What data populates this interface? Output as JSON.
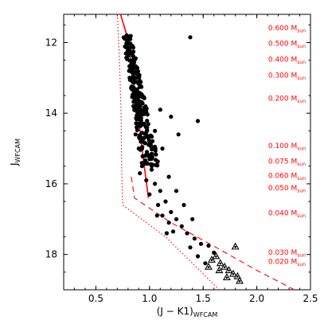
{
  "chart_data": {
    "type": "scatter",
    "title": "",
    "xlabel": {
      "main": "(J − K1)",
      "sub": "WFCAM"
    },
    "ylabel": {
      "main": "J",
      "sub": "WFCAM"
    },
    "xlim": [
      0.2,
      2.5
    ],
    "ylim": [
      19.0,
      11.2
    ],
    "x_ticks": [
      0.5,
      1.0,
      1.5,
      2.0,
      2.5
    ],
    "x_tick_labels": [
      "0.5",
      "1.0",
      "1.5",
      "2.0",
      "2.5"
    ],
    "y_ticks": [
      12,
      14,
      16,
      18
    ],
    "y_tick_labels": [
      "12",
      "14",
      "16",
      "18"
    ],
    "grid": false,
    "colors": {
      "points": "#000000",
      "model": "#ff0000",
      "axes": "#000000"
    },
    "mass_labels": [
      {
        "value": "0.600",
        "unit": "M",
        "sub": "sun",
        "J": 11.58
      },
      {
        "value": "0.500",
        "unit": "M",
        "sub": "sun",
        "J": 12.02
      },
      {
        "value": "0.400",
        "unit": "M",
        "sub": "sun",
        "J": 12.47
      },
      {
        "value": "0.300",
        "unit": "M",
        "sub": "sun",
        "J": 12.92
      },
      {
        "value": "0.200",
        "unit": "M",
        "sub": "sun",
        "J": 13.58
      },
      {
        "value": "0.100",
        "unit": "M",
        "sub": "sun",
        "J": 14.92
      },
      {
        "value": "0.075",
        "unit": "M",
        "sub": "sun",
        "J": 15.36
      },
      {
        "value": "0.060",
        "unit": "M",
        "sub": "sun",
        "J": 15.76
      },
      {
        "value": "0.050",
        "unit": "M",
        "sub": "sun",
        "J": 16.12
      },
      {
        "value": "0.040",
        "unit": "M",
        "sub": "sun",
        "J": 16.82
      },
      {
        "value": "0.030",
        "unit": "M",
        "sub": "sun",
        "J": 17.94
      },
      {
        "value": "0.020",
        "unit": "M",
        "sub": "sun",
        "J": 18.2
      }
    ],
    "series": [
      {
        "type": "line",
        "style": "solid",
        "points": [
          [
            0.73,
            11.2
          ],
          [
            0.79,
            11.8
          ],
          [
            0.83,
            12.6
          ],
          [
            0.86,
            13.4
          ],
          [
            0.9,
            14.2
          ],
          [
            0.93,
            15.0
          ],
          [
            0.96,
            15.7
          ],
          [
            0.99,
            16.4
          ]
        ]
      },
      {
        "type": "line",
        "style": "dotted",
        "points": [
          [
            0.7,
            11.2
          ],
          [
            0.72,
            12.5
          ],
          [
            0.735,
            14.0
          ],
          [
            0.74,
            15.5
          ],
          [
            0.75,
            16.6
          ],
          [
            1.15,
            17.5
          ],
          [
            1.45,
            18.4
          ],
          [
            1.65,
            19.0
          ]
        ]
      },
      {
        "type": "line",
        "style": "dashed",
        "points": [
          [
            0.83,
            15.8
          ],
          [
            0.86,
            16.4
          ],
          [
            1.2,
            17.1
          ],
          [
            1.65,
            17.85
          ],
          [
            2.0,
            18.45
          ],
          [
            2.35,
            19.0
          ]
        ]
      },
      {
        "type": "scatter",
        "marker": "circle",
        "points": [
          [
            1.38,
            11.85
          ],
          [
            1.45,
            14.22
          ],
          [
            1.2,
            14.1
          ],
          [
            1.1,
            13.9
          ],
          [
            1.27,
            14.6
          ],
          [
            0.82,
            11.9
          ],
          [
            0.84,
            12.1
          ],
          [
            0.8,
            12.3
          ],
          [
            0.86,
            12.5
          ],
          [
            0.81,
            12.8
          ],
          [
            0.87,
            13.0
          ],
          [
            0.83,
            13.3
          ],
          [
            0.89,
            13.5
          ],
          [
            0.85,
            13.8
          ],
          [
            0.92,
            14.0
          ],
          [
            0.88,
            14.4
          ],
          [
            0.95,
            14.7
          ],
          [
            0.9,
            15.0
          ],
          [
            0.98,
            15.2
          ],
          [
            0.93,
            15.5
          ],
          [
            1.02,
            15.6
          ],
          [
            0.97,
            15.9
          ],
          [
            1.05,
            16.0
          ],
          [
            1.0,
            16.3
          ],
          [
            1.1,
            16.2
          ],
          [
            1.08,
            16.6
          ],
          [
            1.15,
            16.5
          ],
          [
            1.12,
            16.9
          ],
          [
            1.2,
            16.8
          ],
          [
            1.18,
            17.1
          ],
          [
            1.25,
            17.0
          ],
          [
            1.3,
            17.2
          ],
          [
            1.22,
            17.35
          ],
          [
            1.35,
            17.4
          ],
          [
            1.42,
            17.55
          ],
          [
            1.48,
            17.7
          ],
          [
            1.38,
            17.8
          ],
          [
            1.55,
            17.75
          ],
          [
            1.45,
            18.05
          ],
          [
            1.6,
            17.95
          ],
          [
            1.52,
            18.25
          ],
          [
            1.05,
            14.5
          ],
          [
            1.12,
            15.0
          ],
          [
            1.18,
            15.8
          ],
          [
            1.25,
            16.2
          ],
          [
            1.32,
            16.6
          ],
          [
            1.4,
            17.0
          ],
          [
            0.95,
            14.3
          ],
          [
            1.0,
            15.3
          ],
          [
            0.87,
            14.6
          ],
          [
            0.91,
            15.7
          ],
          [
            1.07,
            16.9
          ],
          [
            1.16,
            17.4
          ]
        ]
      },
      {
        "type": "scatter",
        "marker": "triangle",
        "points": [
          [
            1.58,
            18.15
          ],
          [
            1.62,
            18.05
          ],
          [
            1.66,
            18.25
          ],
          [
            1.7,
            18.35
          ],
          [
            1.74,
            18.45
          ],
          [
            1.78,
            18.55
          ],
          [
            1.82,
            18.62
          ],
          [
            1.65,
            18.45
          ],
          [
            1.72,
            18.65
          ],
          [
            1.8,
            17.78
          ],
          [
            1.55,
            18.35
          ],
          [
            1.84,
            18.75
          ]
        ]
      }
    ]
  }
}
